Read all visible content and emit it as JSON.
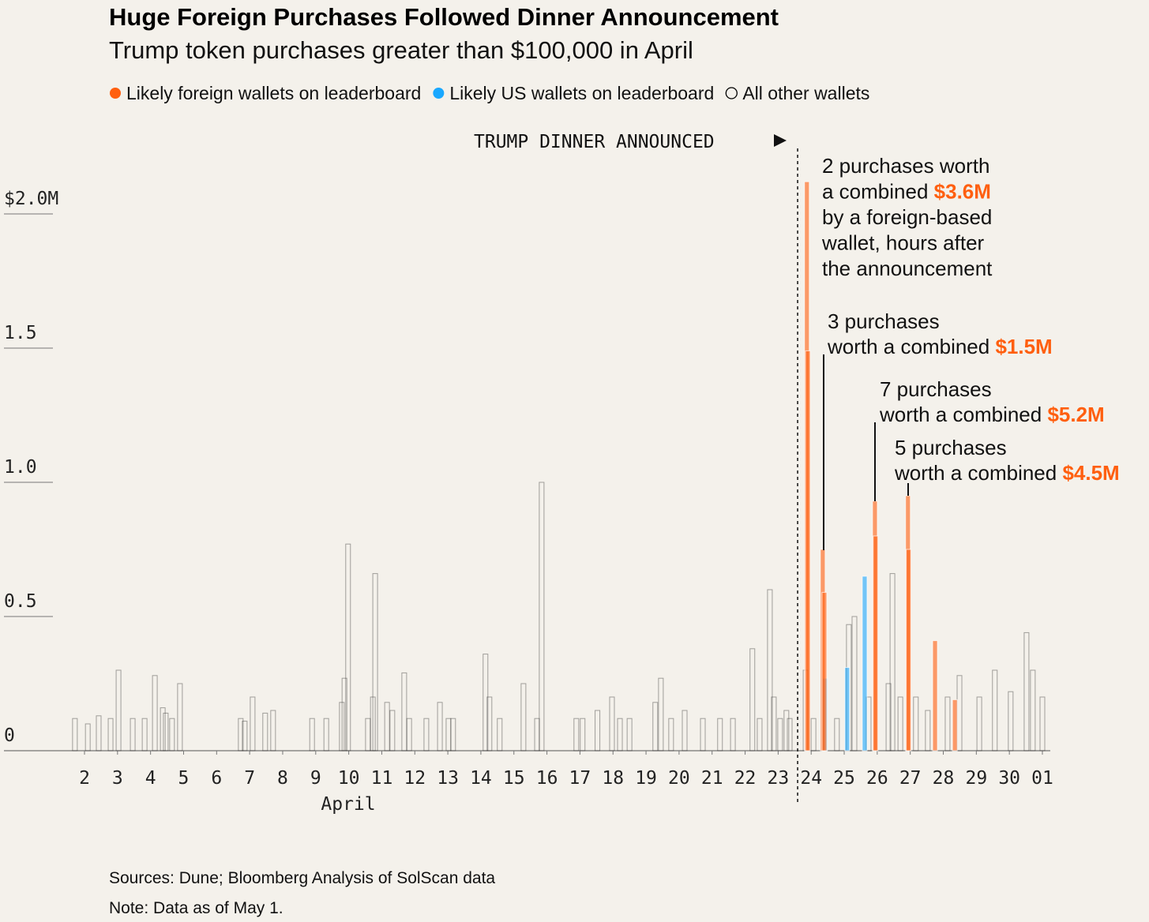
{
  "chart_data": {
    "type": "bar",
    "title": "Huge Foreign Purchases Followed Dinner Announcement",
    "subtitle": "Trump token purchases greater than $100,000 in April",
    "x_label": "April",
    "event_label": "TRUMP DINNER ANNOUNCED",
    "event_x": 23.59,
    "xlim": [
      1,
      31.3
    ],
    "xticks": [
      2,
      3,
      4,
      5,
      6,
      7,
      8,
      9,
      10,
      11,
      12,
      13,
      14,
      15,
      16,
      17,
      18,
      19,
      20,
      21,
      22,
      23,
      24,
      25,
      26,
      27,
      28,
      29,
      30,
      {
        "value": 31,
        "label": "01"
      }
    ],
    "ylim": [
      0,
      2.2
    ],
    "yticks": [
      0,
      0.5,
      {
        "value": 1,
        "label": "1.0"
      },
      1.5,
      {
        "value": 2,
        "label": "$2.0M"
      }
    ],
    "series": [
      {
        "name": "Likely foreign wallets on leaderboard",
        "color": "#ff5f0f",
        "x": [
          23.87,
          23.9,
          24.35,
          24.4,
          25.93,
          25.95,
          26.93,
          26.95,
          27.75,
          28.35
        ],
        "values": [
          2.12,
          1.49,
          0.75,
          0.59,
          0.93,
          0.8,
          0.95,
          0.75,
          0.41,
          0.19
        ]
      },
      {
        "name": "Likely US wallets on leaderboard",
        "color": "#1aa8ff",
        "x": [
          24.42,
          25.09,
          25.62
        ],
        "values": [
          0.27,
          0.31,
          0.65
        ]
      },
      {
        "name": "All other wallets",
        "color": "#000000",
        "x": [
          1.71,
          2.1,
          2.43,
          2.79,
          3.03,
          3.46,
          3.82,
          4.13,
          4.37,
          4.46,
          4.65,
          4.89,
          6.73,
          6.85,
          7.09,
          7.47,
          7.71,
          8.89,
          9.32,
          9.79,
          9.87,
          9.98,
          10.58,
          10.73,
          10.8,
          11.16,
          11.32,
          11.68,
          11.83,
          12.35,
          12.76,
          13.02,
          13.16,
          14.14,
          14.26,
          14.57,
          15.29,
          15.7,
          15.84,
          16.89,
          17.08,
          17.53,
          17.97,
          18.21,
          18.5,
          19.28,
          19.45,
          19.76,
          20.17,
          20.72,
          21.24,
          21.63,
          22.22,
          22.44,
          22.75,
          22.87,
          23.06,
          23.25,
          23.35,
          23.83,
          24.07,
          24.78,
          25.14,
          25.31,
          25.74,
          26.34,
          26.46,
          26.7,
          27.17,
          27.53,
          28.13,
          28.49,
          29.09,
          29.56,
          30.04,
          30.52,
          30.71,
          31.0
        ],
        "values": [
          0.12,
          0.1,
          0.13,
          0.12,
          0.3,
          0.12,
          0.12,
          0.28,
          0.16,
          0.14,
          0.12,
          0.25,
          0.12,
          0.11,
          0.2,
          0.14,
          0.15,
          0.12,
          0.12,
          0.18,
          0.27,
          0.77,
          0.12,
          0.2,
          0.66,
          0.18,
          0.15,
          0.29,
          0.12,
          0.12,
          0.18,
          0.12,
          0.12,
          0.36,
          0.2,
          0.12,
          0.25,
          0.12,
          1.0,
          0.12,
          0.12,
          0.15,
          0.2,
          0.12,
          0.12,
          0.18,
          0.27,
          0.12,
          0.15,
          0.12,
          0.12,
          0.12,
          0.38,
          0.12,
          0.6,
          0.2,
          0.12,
          0.15,
          0.12,
          0.3,
          0.12,
          0.12,
          0.47,
          0.5,
          0.2,
          0.25,
          0.66,
          0.2,
          0.2,
          0.15,
          0.2,
          0.28,
          0.2,
          0.3,
          0.22,
          0.44,
          0.3,
          0.2
        ]
      }
    ],
    "annotations": [
      {
        "lines": [
          [
            "2 purchases worth"
          ],
          [
            "a combined ",
            "$3.6M"
          ],
          [
            "by a foreign-based"
          ],
          [
            "wallet, hours after"
          ],
          [
            "the announcement"
          ]
        ]
      },
      {
        "lines": [
          [
            "3 purchases"
          ],
          [
            "worth a combined ",
            "$1.5M"
          ]
        ]
      },
      {
        "lines": [
          [
            "7 purchases"
          ],
          [
            "worth a combined ",
            "$5.2M"
          ]
        ]
      },
      {
        "lines": [
          [
            "5 purchases"
          ],
          [
            "worth a combined ",
            "$4.5M"
          ]
        ]
      }
    ],
    "source": "Sources: Dune; Bloomberg Analysis of SolScan data",
    "note": "Note: Data as of May 1."
  }
}
